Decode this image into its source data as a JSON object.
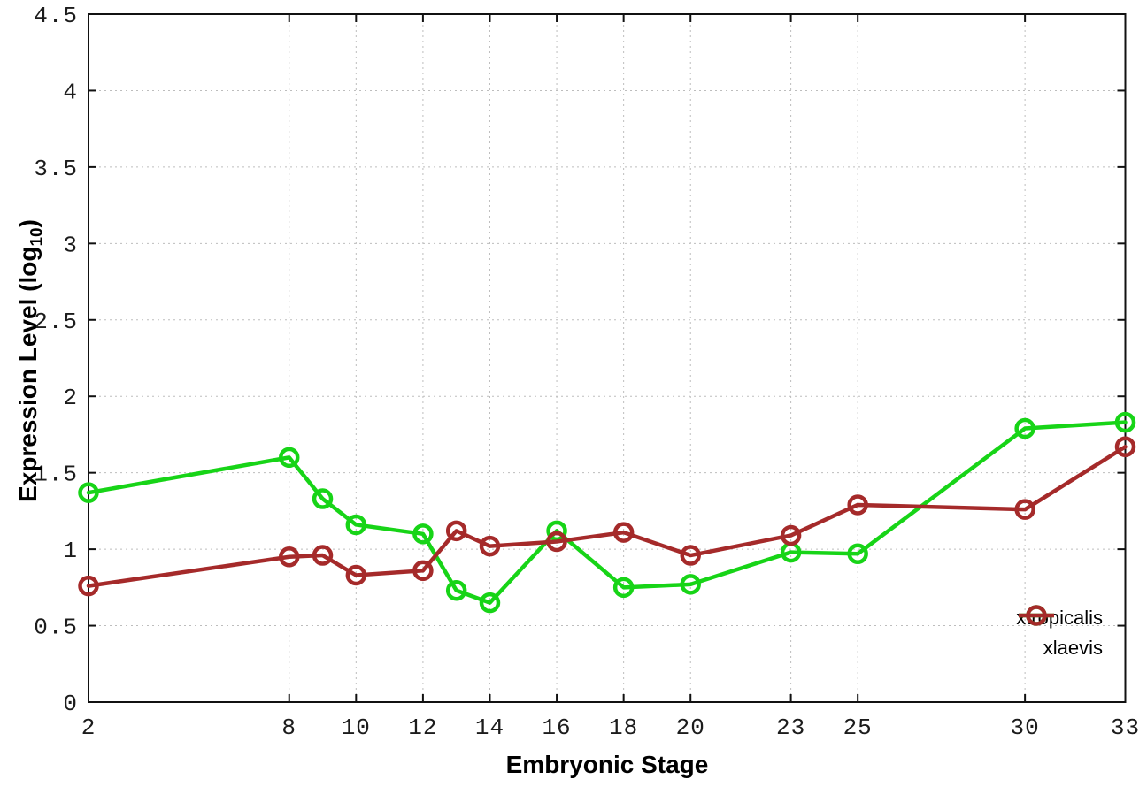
{
  "chart_data": {
    "type": "line",
    "title": "",
    "xlabel": "Embryonic Stage",
    "ylabel": "Expression Level (log10)",
    "ylabel_parts": {
      "main": "Expression Level (log",
      "sub": "10",
      "end": ")"
    },
    "xlim": [
      2,
      33
    ],
    "ylim": [
      0,
      4.5
    ],
    "grid": true,
    "marker": "open-circle",
    "legend_position": "bottom-right-inside",
    "xticks": {
      "values": [
        2,
        8,
        10,
        12,
        14,
        16,
        18,
        20,
        23,
        25,
        30,
        33
      ],
      "labels": [
        "2",
        "8",
        "10",
        "12",
        "14",
        "16",
        "18",
        "20",
        "23",
        "25",
        "30",
        "33"
      ]
    },
    "yticks": {
      "values": [
        0,
        0.5,
        1,
        1.5,
        2,
        2.5,
        3,
        3.5,
        4,
        4.5
      ],
      "labels": [
        "0",
        "0.5",
        "1",
        "1.5",
        "2",
        "2.5",
        "3",
        "3.5",
        "4",
        "4.5"
      ]
    },
    "x": [
      2,
      8,
      9,
      10,
      12,
      13,
      14,
      16,
      18,
      20,
      23,
      25,
      30,
      33
    ],
    "series": [
      {
        "name": "xtropicalis",
        "color": "#17d417",
        "values": [
          1.37,
          1.6,
          1.33,
          1.16,
          1.1,
          0.73,
          0.65,
          1.12,
          0.75,
          0.77,
          0.98,
          0.97,
          1.79,
          1.83
        ]
      },
      {
        "name": "xlaevis",
        "color": "#a52a2a",
        "values": [
          0.76,
          0.95,
          0.96,
          0.83,
          0.86,
          1.12,
          1.02,
          1.05,
          1.11,
          0.96,
          1.09,
          1.29,
          1.26,
          1.67
        ]
      }
    ]
  }
}
